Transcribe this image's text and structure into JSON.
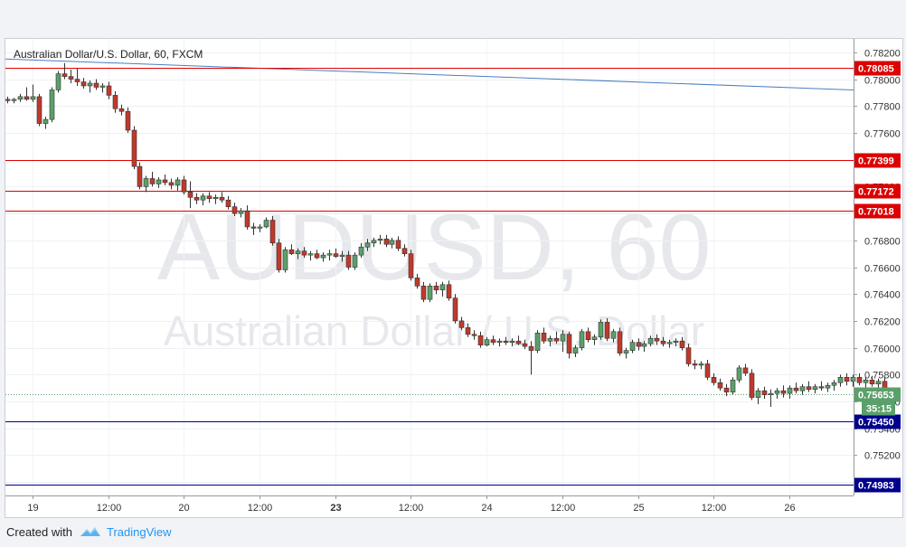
{
  "symbol_title": "Australian Dollar/U.S. Dollar, 60, FXCM",
  "watermark": {
    "line1": "AUDUSD, 60",
    "line2": "Australian Dollar / U.S. Dollar"
  },
  "footer": {
    "created_with": "Created with",
    "brand": "TradingView"
  },
  "colors": {
    "up": "#5ba06a",
    "down": "#c0392b",
    "resistance": "#dd0000",
    "support": "#00008b",
    "trendline": "#4a7fc1",
    "current": "#5ba06a"
  },
  "chart_data": {
    "type": "candlestick",
    "title": "Australian Dollar/U.S. Dollar, 60, FXCM",
    "timeframe": "60",
    "ylim": [
      0.749,
      0.783
    ],
    "y_ticks": [
      "0.78200",
      "0.78000",
      "0.77800",
      "0.77600",
      "0.77400",
      "0.77200",
      "0.77000",
      "0.76800",
      "0.76600",
      "0.76400",
      "0.76200",
      "0.76000",
      "0.75800",
      "0.75600",
      "0.75400",
      "0.75200",
      "0.75000"
    ],
    "x_ticks": [
      "19",
      "12:00",
      "20",
      "12:00",
      "23",
      "12:00",
      "24",
      "12:00",
      "25",
      "12:00",
      "26"
    ],
    "resistance_levels": [
      "0.78085",
      "0.77399",
      "0.77172",
      "0.77018"
    ],
    "support_levels": [
      "0.75450",
      "0.74983"
    ],
    "current_price": "0.75653",
    "countdown": "35:15",
    "trendline": {
      "from": 0.7815,
      "to": 0.7792
    },
    "candles": [
      [
        0.7785,
        0.7787,
        0.7782,
        0.7784
      ],
      [
        0.7784,
        0.7786,
        0.7782,
        0.7785
      ],
      [
        0.7785,
        0.7789,
        0.7783,
        0.7787
      ],
      [
        0.7787,
        0.7794,
        0.7784,
        0.7785
      ],
      [
        0.7785,
        0.7796,
        0.7783,
        0.7787
      ],
      [
        0.7787,
        0.7789,
        0.7765,
        0.7767
      ],
      [
        0.7767,
        0.7772,
        0.7763,
        0.777
      ],
      [
        0.777,
        0.7794,
        0.7768,
        0.7792
      ],
      [
        0.7792,
        0.7806,
        0.779,
        0.7804
      ],
      [
        0.7804,
        0.7812,
        0.78,
        0.7802
      ],
      [
        0.7802,
        0.7807,
        0.7797,
        0.78
      ],
      [
        0.78,
        0.7808,
        0.7795,
        0.7798
      ],
      [
        0.7798,
        0.7801,
        0.7793,
        0.7795
      ],
      [
        0.7795,
        0.7799,
        0.779,
        0.7797
      ],
      [
        0.7797,
        0.78,
        0.7792,
        0.7794
      ],
      [
        0.7794,
        0.7797,
        0.779,
        0.7795
      ],
      [
        0.7795,
        0.7798,
        0.7785,
        0.7788
      ],
      [
        0.7788,
        0.7791,
        0.7775,
        0.7778
      ],
      [
        0.7778,
        0.7781,
        0.7773,
        0.7776
      ],
      [
        0.7776,
        0.7779,
        0.776,
        0.7762
      ],
      [
        0.7762,
        0.7765,
        0.7733,
        0.7735
      ],
      [
        0.7735,
        0.7738,
        0.7718,
        0.772
      ],
      [
        0.772,
        0.7728,
        0.7716,
        0.7726
      ],
      [
        0.7726,
        0.7731,
        0.772,
        0.7722
      ],
      [
        0.7722,
        0.7727,
        0.7719,
        0.7725
      ],
      [
        0.7725,
        0.7729,
        0.7721,
        0.7723
      ],
      [
        0.7723,
        0.7726,
        0.7718,
        0.7721
      ],
      [
        0.7721,
        0.7727,
        0.7717,
        0.7725
      ],
      [
        0.7725,
        0.7728,
        0.7714,
        0.7716
      ],
      [
        0.7716,
        0.7724,
        0.7704,
        0.7712
      ],
      [
        0.7712,
        0.7715,
        0.7707,
        0.771
      ],
      [
        0.771,
        0.7715,
        0.7706,
        0.7713
      ],
      [
        0.7713,
        0.7716,
        0.7708,
        0.7711
      ],
      [
        0.7711,
        0.7714,
        0.7707,
        0.7712
      ],
      [
        0.7712,
        0.7716,
        0.7708,
        0.771
      ],
      [
        0.771,
        0.7713,
        0.7703,
        0.7705
      ],
      [
        0.7705,
        0.7708,
        0.7698,
        0.77
      ],
      [
        0.77,
        0.7704,
        0.7697,
        0.7702
      ],
      [
        0.7702,
        0.7706,
        0.7688,
        0.769
      ],
      [
        0.769,
        0.7693,
        0.7684,
        0.7689
      ],
      [
        0.7689,
        0.7692,
        0.7686,
        0.769
      ],
      [
        0.769,
        0.7697,
        0.7689,
        0.7695
      ],
      [
        0.7695,
        0.7698,
        0.7676,
        0.7678
      ],
      [
        0.7678,
        0.7681,
        0.7656,
        0.7658
      ],
      [
        0.7658,
        0.7675,
        0.7656,
        0.7673
      ],
      [
        0.7673,
        0.7677,
        0.7669,
        0.767
      ],
      [
        0.767,
        0.7674,
        0.7666,
        0.7672
      ],
      [
        0.7672,
        0.7675,
        0.7667,
        0.7669
      ],
      [
        0.7669,
        0.7672,
        0.7665,
        0.767
      ],
      [
        0.767,
        0.7673,
        0.7666,
        0.7667
      ],
      [
        0.7667,
        0.7671,
        0.7664,
        0.7669
      ],
      [
        0.7669,
        0.7673,
        0.7665,
        0.767
      ],
      [
        0.767,
        0.7674,
        0.7667,
        0.7668
      ],
      [
        0.7668,
        0.7672,
        0.7664,
        0.7669
      ],
      [
        0.7669,
        0.7672,
        0.7658,
        0.766
      ],
      [
        0.766,
        0.7671,
        0.7658,
        0.7669
      ],
      [
        0.7669,
        0.7678,
        0.7667,
        0.7675
      ],
      [
        0.7675,
        0.7681,
        0.7672,
        0.7678
      ],
      [
        0.7678,
        0.7682,
        0.7675,
        0.768
      ],
      [
        0.768,
        0.7684,
        0.7677,
        0.7681
      ],
      [
        0.7681,
        0.7684,
        0.7675,
        0.7677
      ],
      [
        0.7677,
        0.7682,
        0.7674,
        0.768
      ],
      [
        0.768,
        0.7683,
        0.7672,
        0.7674
      ],
      [
        0.7674,
        0.7677,
        0.7668,
        0.767
      ],
      [
        0.767,
        0.7673,
        0.765,
        0.7652
      ],
      [
        0.7652,
        0.7655,
        0.7644,
        0.7646
      ],
      [
        0.7646,
        0.7649,
        0.7634,
        0.7636
      ],
      [
        0.7636,
        0.7648,
        0.7634,
        0.7646
      ],
      [
        0.7646,
        0.7649,
        0.764,
        0.7643
      ],
      [
        0.7643,
        0.7649,
        0.7638,
        0.7647
      ],
      [
        0.7647,
        0.765,
        0.7635,
        0.7637
      ],
      [
        0.7637,
        0.764,
        0.7618,
        0.762
      ],
      [
        0.762,
        0.7623,
        0.7613,
        0.7615
      ],
      [
        0.7615,
        0.7618,
        0.7608,
        0.761
      ],
      [
        0.761,
        0.7613,
        0.7606,
        0.7609
      ],
      [
        0.7609,
        0.7612,
        0.76,
        0.7602
      ],
      [
        0.7602,
        0.7608,
        0.7601,
        0.7606
      ],
      [
        0.7606,
        0.7609,
        0.7602,
        0.7604
      ],
      [
        0.7604,
        0.7607,
        0.7601,
        0.7605
      ],
      [
        0.7605,
        0.7608,
        0.7602,
        0.7604
      ],
      [
        0.7604,
        0.7607,
        0.7601,
        0.7605
      ],
      [
        0.7605,
        0.7609,
        0.7602,
        0.7603
      ],
      [
        0.7603,
        0.7606,
        0.7599,
        0.7601
      ],
      [
        0.7601,
        0.7605,
        0.758,
        0.7598
      ],
      [
        0.7598,
        0.7613,
        0.7596,
        0.7611
      ],
      [
        0.7611,
        0.7615,
        0.7603,
        0.7605
      ],
      [
        0.7605,
        0.7609,
        0.7601,
        0.7607
      ],
      [
        0.7607,
        0.7612,
        0.7603,
        0.7605
      ],
      [
        0.7605,
        0.7613,
        0.7597,
        0.761
      ],
      [
        0.761,
        0.7612,
        0.7592,
        0.7596
      ],
      [
        0.7596,
        0.7602,
        0.7593,
        0.76
      ],
      [
        0.76,
        0.7614,
        0.7598,
        0.7612
      ],
      [
        0.7612,
        0.7615,
        0.7604,
        0.7606
      ],
      [
        0.7606,
        0.761,
        0.7602,
        0.7608
      ],
      [
        0.7608,
        0.7621,
        0.7606,
        0.7619
      ],
      [
        0.7619,
        0.7622,
        0.7605,
        0.7607
      ],
      [
        0.7607,
        0.7614,
        0.7604,
        0.7612
      ],
      [
        0.7612,
        0.7615,
        0.7594,
        0.7596
      ],
      [
        0.7596,
        0.76,
        0.7592,
        0.7598
      ],
      [
        0.7598,
        0.7606,
        0.7596,
        0.7604
      ],
      [
        0.7604,
        0.7607,
        0.7598,
        0.7601
      ],
      [
        0.7601,
        0.7605,
        0.7597,
        0.7603
      ],
      [
        0.7603,
        0.7609,
        0.7601,
        0.7607
      ],
      [
        0.7607,
        0.761,
        0.7602,
        0.7605
      ],
      [
        0.7605,
        0.7608,
        0.7601,
        0.7603
      ],
      [
        0.7603,
        0.7606,
        0.76,
        0.7604
      ],
      [
        0.7604,
        0.7607,
        0.7601,
        0.7605
      ],
      [
        0.7605,
        0.7608,
        0.7598,
        0.76
      ],
      [
        0.76,
        0.7603,
        0.7586,
        0.7588
      ],
      [
        0.7588,
        0.7591,
        0.7584,
        0.7587
      ],
      [
        0.7587,
        0.759,
        0.7584,
        0.7588
      ],
      [
        0.7588,
        0.7591,
        0.7576,
        0.7578
      ],
      [
        0.7578,
        0.7581,
        0.7572,
        0.7574
      ],
      [
        0.7574,
        0.7577,
        0.7568,
        0.757
      ],
      [
        0.757,
        0.7573,
        0.7564,
        0.7567
      ],
      [
        0.7567,
        0.7578,
        0.7565,
        0.7576
      ],
      [
        0.7576,
        0.7587,
        0.7574,
        0.7585
      ],
      [
        0.7585,
        0.7588,
        0.7579,
        0.7581
      ],
      [
        0.7581,
        0.7584,
        0.7561,
        0.7563
      ],
      [
        0.7563,
        0.757,
        0.7558,
        0.7568
      ],
      [
        0.7568,
        0.7571,
        0.7562,
        0.7565
      ],
      [
        0.7565,
        0.7569,
        0.7556,
        0.7566
      ],
      [
        0.7566,
        0.757,
        0.7562,
        0.7568
      ],
      [
        0.7568,
        0.7572,
        0.7563,
        0.7566
      ],
      [
        0.7566,
        0.7572,
        0.7562,
        0.757
      ],
      [
        0.757,
        0.7574,
        0.7566,
        0.7568
      ],
      [
        0.7568,
        0.7573,
        0.7565,
        0.7571
      ],
      [
        0.7571,
        0.7575,
        0.7567,
        0.7569
      ],
      [
        0.7569,
        0.7573,
        0.7566,
        0.7571
      ],
      [
        0.7571,
        0.7575,
        0.7568,
        0.757
      ],
      [
        0.757,
        0.7574,
        0.7567,
        0.7572
      ],
      [
        0.7572,
        0.7576,
        0.7568,
        0.7574
      ],
      [
        0.7574,
        0.758,
        0.7571,
        0.7578
      ],
      [
        0.7578,
        0.7581,
        0.7572,
        0.7575
      ],
      [
        0.7575,
        0.758,
        0.7571,
        0.7578
      ],
      [
        0.7578,
        0.7581,
        0.7572,
        0.7574
      ],
      [
        0.7574,
        0.7578,
        0.757,
        0.7576
      ],
      [
        0.7576,
        0.7579,
        0.7571,
        0.7573
      ],
      [
        0.7573,
        0.7577,
        0.757,
        0.7575
      ],
      [
        0.7575,
        0.7578,
        0.756,
        0.7562
      ],
      [
        0.7562,
        0.7568,
        0.7558,
        0.7565
      ]
    ]
  }
}
